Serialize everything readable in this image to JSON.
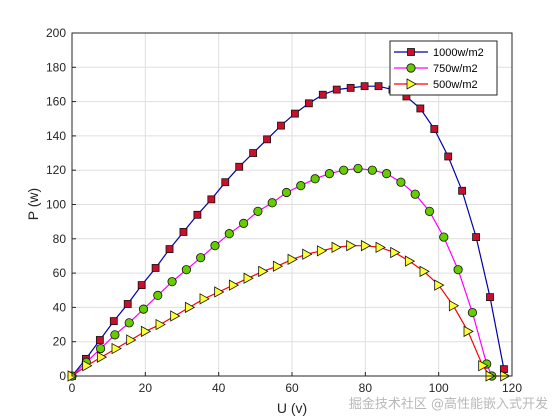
{
  "chart_data": {
    "type": "line",
    "title": "",
    "xlabel": "U (v)",
    "ylabel": "P (w)",
    "xlim": [
      0,
      120
    ],
    "ylim": [
      0,
      200
    ],
    "x_ticks": [
      "0",
      "20",
      "40",
      "60",
      "80",
      "100",
      "120"
    ],
    "y_ticks": [
      "0",
      "20",
      "40",
      "60",
      "80",
      "100",
      "120",
      "140",
      "160",
      "180",
      "200"
    ],
    "grid": true,
    "legend_position": "top-right",
    "series": [
      {
        "name": "1000w/m2",
        "line_color": "#0000aa",
        "marker": "square",
        "marker_fill": "#c8102e",
        "points": [
          [
            0,
            0
          ],
          [
            3.8,
            10
          ],
          [
            7.6,
            21
          ],
          [
            11.4,
            32
          ],
          [
            15.2,
            42
          ],
          [
            19,
            53
          ],
          [
            22.8,
            63
          ],
          [
            26.6,
            74
          ],
          [
            30.4,
            84
          ],
          [
            34.2,
            94
          ],
          [
            38,
            103
          ],
          [
            41.8,
            113
          ],
          [
            45.6,
            122
          ],
          [
            49.4,
            130
          ],
          [
            53.2,
            138
          ],
          [
            57,
            146
          ],
          [
            60.8,
            153
          ],
          [
            64.6,
            159
          ],
          [
            68.4,
            164
          ],
          [
            72.2,
            167
          ],
          [
            76,
            168
          ],
          [
            79.8,
            169
          ],
          [
            83.6,
            169
          ],
          [
            87.4,
            167
          ],
          [
            91.2,
            163
          ],
          [
            95,
            156
          ],
          [
            98.8,
            144
          ],
          [
            102.6,
            128
          ],
          [
            106.4,
            108
          ],
          [
            110.2,
            81
          ],
          [
            114,
            46
          ],
          [
            117.8,
            4
          ]
        ]
      },
      {
        "name": "750w/m2",
        "line_color": "#ff00ff",
        "marker": "circle",
        "marker_fill": "#66cc00",
        "points": [
          [
            0,
            0
          ],
          [
            3.9,
            8
          ],
          [
            7.8,
            16
          ],
          [
            11.7,
            24
          ],
          [
            15.6,
            31
          ],
          [
            19.5,
            39
          ],
          [
            23.4,
            47
          ],
          [
            27.3,
            55
          ],
          [
            31.2,
            62
          ],
          [
            35.1,
            69
          ],
          [
            39,
            76
          ],
          [
            42.9,
            83
          ],
          [
            46.8,
            89
          ],
          [
            50.7,
            96
          ],
          [
            54.6,
            101
          ],
          [
            58.5,
            107
          ],
          [
            62.4,
            111
          ],
          [
            66.3,
            115
          ],
          [
            70.2,
            118
          ],
          [
            74.1,
            120
          ],
          [
            78,
            121
          ],
          [
            81.9,
            120
          ],
          [
            85.8,
            118
          ],
          [
            89.7,
            113
          ],
          [
            93.6,
            106
          ],
          [
            97.5,
            96
          ],
          [
            101.4,
            81
          ],
          [
            105.3,
            62
          ],
          [
            109.2,
            37
          ],
          [
            113.1,
            7
          ],
          [
            114.5,
            0
          ]
        ]
      },
      {
        "name": "500w/m2",
        "line_color": "#ff0000",
        "marker": "triangle-right",
        "marker_fill": "#ffff33",
        "points": [
          [
            0,
            0
          ],
          [
            4,
            6
          ],
          [
            8,
            11
          ],
          [
            12,
            16
          ],
          [
            16,
            21
          ],
          [
            20,
            26
          ],
          [
            24,
            30
          ],
          [
            28,
            35
          ],
          [
            32,
            40
          ],
          [
            36,
            45
          ],
          [
            40,
            49
          ],
          [
            44,
            53
          ],
          [
            48,
            57
          ],
          [
            52,
            61
          ],
          [
            56,
            64
          ],
          [
            60,
            68
          ],
          [
            64,
            71
          ],
          [
            68,
            73
          ],
          [
            72,
            75
          ],
          [
            76,
            76
          ],
          [
            80,
            76
          ],
          [
            84,
            75
          ],
          [
            88,
            72
          ],
          [
            92,
            67
          ],
          [
            96,
            61
          ],
          [
            100,
            53
          ],
          [
            104,
            41
          ],
          [
            108,
            26
          ],
          [
            112,
            6
          ],
          [
            114,
            0
          ],
          [
            118,
            0
          ]
        ]
      }
    ]
  },
  "watermark": "掘金技术社区 @高性能嵌入式开发"
}
